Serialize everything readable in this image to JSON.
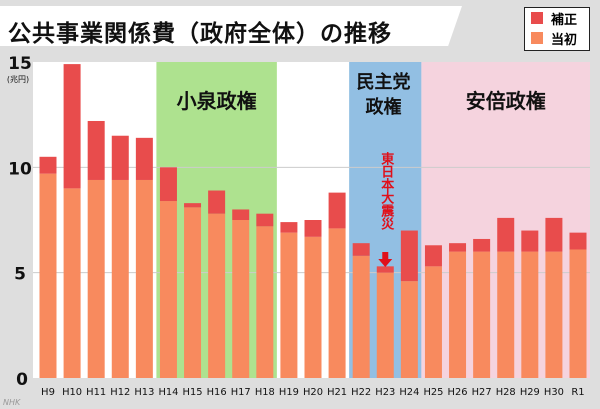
{
  "chart_data": {
    "type": "bar",
    "stacked": true,
    "title": "公共事業関係費（政府全体）の推移",
    "ylabel": "(兆円)",
    "ylim": [
      0,
      15
    ],
    "yticks": [
      0,
      5,
      10,
      15
    ],
    "categories": [
      "H9",
      "H10",
      "H11",
      "H12",
      "H13",
      "H14",
      "H15",
      "H16",
      "H17",
      "H18",
      "H19",
      "H20",
      "H21",
      "H22",
      "H23",
      "H24",
      "H25",
      "H26",
      "H27",
      "H28",
      "H29",
      "H30",
      "R1"
    ],
    "series": [
      {
        "name": "当初",
        "color": "#f88a5e",
        "values": [
          9.7,
          9.0,
          9.4,
          9.4,
          9.4,
          8.4,
          8.1,
          7.8,
          7.5,
          7.2,
          6.9,
          6.7,
          7.1,
          5.8,
          5.0,
          4.6,
          5.3,
          6.0,
          6.0,
          6.0,
          6.0,
          6.0,
          6.1
        ]
      },
      {
        "name": "補正",
        "color": "#e84c4c",
        "values": [
          0.8,
          5.9,
          2.8,
          2.1,
          2.0,
          1.6,
          0.2,
          1.1,
          0.5,
          0.6,
          0.5,
          0.8,
          1.7,
          0.6,
          0.3,
          2.4,
          1.0,
          0.4,
          0.6,
          1.6,
          1.0,
          1.6,
          0.8
        ]
      }
    ],
    "regions": [
      {
        "label": "小泉政権",
        "from": "H14",
        "to": "H18",
        "color": "#aee28f"
      },
      {
        "label": "民主党政権",
        "line1": "民主党",
        "line2": "政権",
        "from": "H22",
        "to": "H24",
        "color": "#92bfe3"
      },
      {
        "label": "安倍政権",
        "from": "H25",
        "to": "R1",
        "color": "#f5d3de"
      }
    ],
    "annotation": {
      "text": "東日本大震災",
      "at": "H23",
      "color": "#e0101a"
    },
    "legend": "top-right"
  },
  "watermark": "NHK"
}
